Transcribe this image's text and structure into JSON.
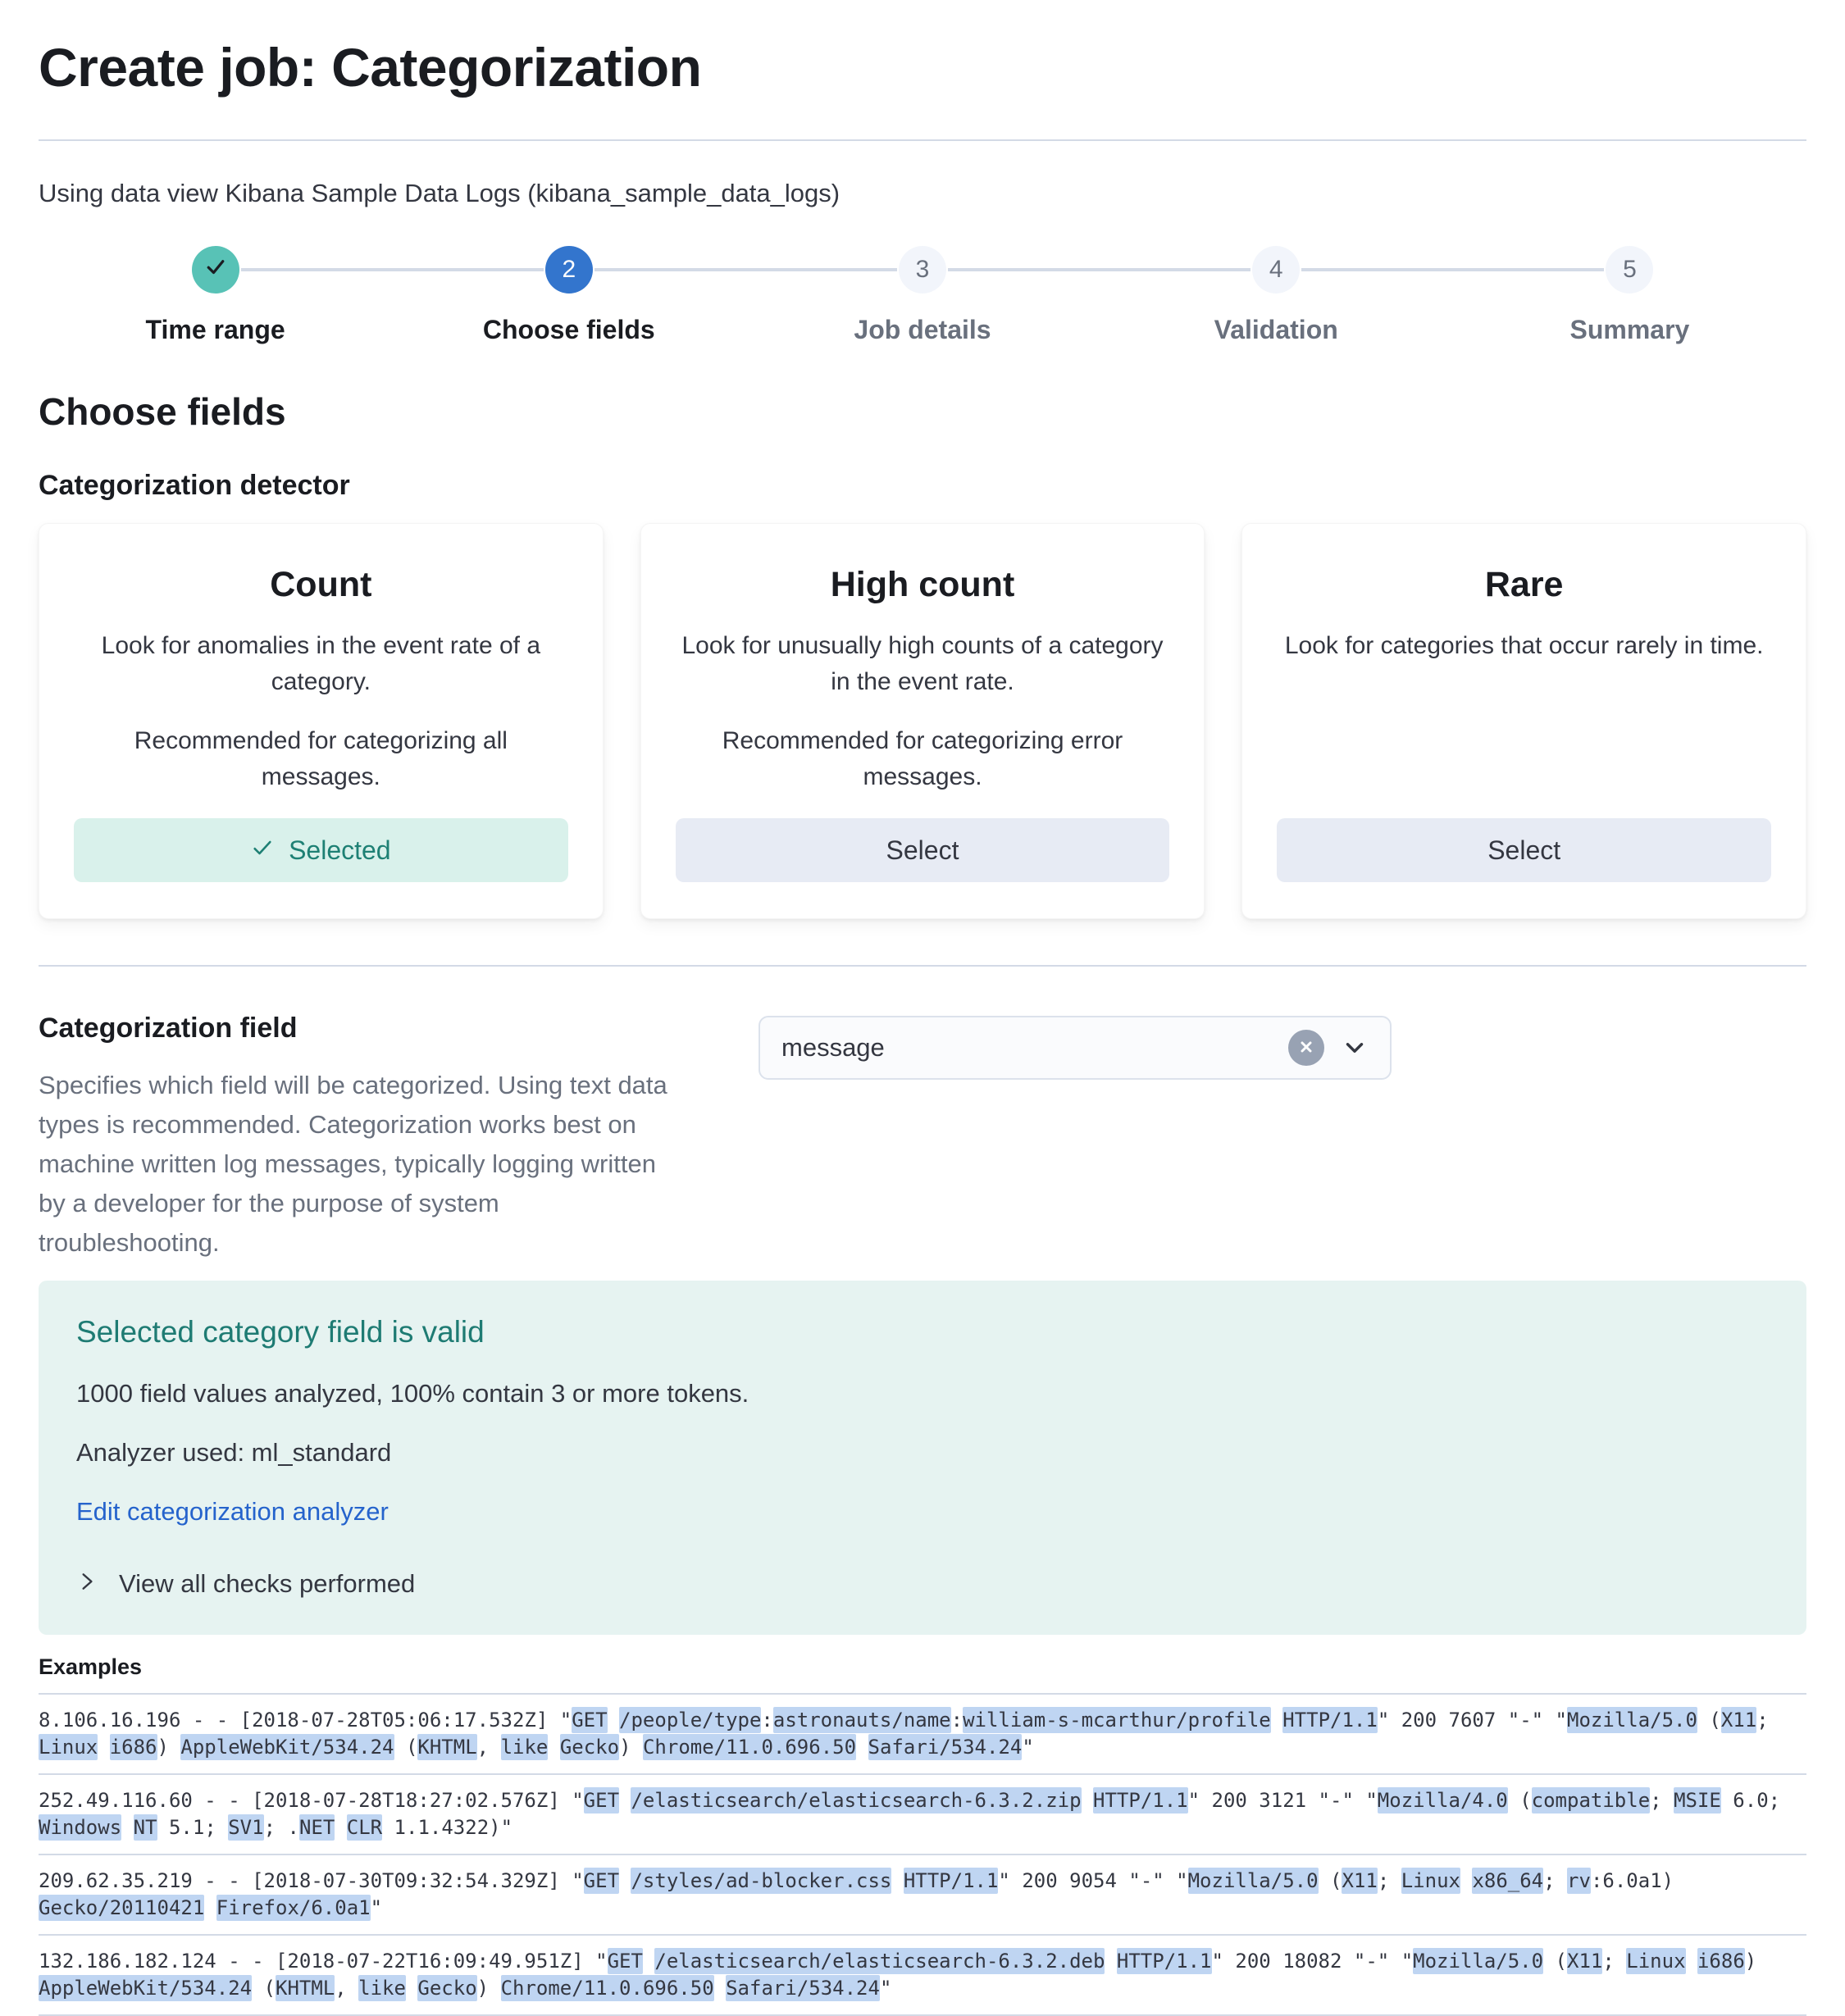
{
  "page": {
    "title": "Create job: Categorization",
    "subtitle": "Using data view Kibana Sample Data Logs (kibana_sample_data_logs)"
  },
  "steps": [
    {
      "label": "Time range",
      "status": "complete",
      "icon": "check-icon"
    },
    {
      "label": "Choose fields",
      "status": "active",
      "number": "2"
    },
    {
      "label": "Job details",
      "status": "incomplete",
      "number": "3"
    },
    {
      "label": "Validation",
      "status": "incomplete",
      "number": "4"
    },
    {
      "label": "Summary",
      "status": "incomplete",
      "number": "5"
    }
  ],
  "section": {
    "heading": "Choose fields",
    "detector_label": "Categorization detector"
  },
  "detector_cards": [
    {
      "title": "Count",
      "line1": "Look for anomalies in the event rate of a category.",
      "line2": "Recommended for categorizing all messages.",
      "button": "Selected",
      "selected": true
    },
    {
      "title": "High count",
      "line1": "Look for unusually high counts of a category in the event rate.",
      "line2": "Recommended for categorizing error messages.",
      "button": "Select",
      "selected": false
    },
    {
      "title": "Rare",
      "line1": "Look for categories that occur rarely in time.",
      "button": "Select",
      "selected": false
    }
  ],
  "categorization_field": {
    "heading": "Categorization field",
    "description": "Specifies which field will be categorized. Using text data types is recommended. Categorization works best on machine written log messages, typically logging written by a developer for the purpose of system troubleshooting.",
    "value": "message"
  },
  "callout": {
    "title": "Selected category field is valid",
    "line1": "1000 field values analyzed, 100% contain 3 or more tokens.",
    "line2": "Analyzer used: ml_standard",
    "link": "Edit categorization analyzer",
    "toggle": "View all checks performed"
  },
  "examples": {
    "label": "Examples",
    "rows": [
      [
        {
          "t": "8.106.16.196 - - [2018-07-28T05:06:17.532Z] \""
        },
        {
          "t": "GET",
          "h": true
        },
        {
          "t": " "
        },
        {
          "t": "/people/type",
          "h": true
        },
        {
          "t": ":"
        },
        {
          "t": "astronauts/name",
          "h": true
        },
        {
          "t": ":"
        },
        {
          "t": "william-s-mcarthur/profile",
          "h": true
        },
        {
          "t": " "
        },
        {
          "t": "HTTP/1.1",
          "h": true
        },
        {
          "t": "\" 200 7607 \"-\" \""
        },
        {
          "t": "Mozilla/5.0",
          "h": true
        },
        {
          "t": " ("
        },
        {
          "t": "X11",
          "h": true
        },
        {
          "t": "; "
        },
        {
          "t": "Linux",
          "h": true
        },
        {
          "t": " "
        },
        {
          "t": "i686",
          "h": true
        },
        {
          "t": ") "
        },
        {
          "t": "AppleWebKit/534.24",
          "h": true
        },
        {
          "t": " ("
        },
        {
          "t": "KHTML",
          "h": true
        },
        {
          "t": ", "
        },
        {
          "t": "like",
          "h": true
        },
        {
          "t": " "
        },
        {
          "t": "Gecko",
          "h": true
        },
        {
          "t": ") "
        },
        {
          "t": "Chrome/11.0.696.50",
          "h": true
        },
        {
          "t": " "
        },
        {
          "t": "Safari/534.24",
          "h": true
        },
        {
          "t": "\""
        }
      ],
      [
        {
          "t": "252.49.116.60 - - [2018-07-28T18:27:02.576Z] \""
        },
        {
          "t": "GET",
          "h": true
        },
        {
          "t": " "
        },
        {
          "t": "/elasticsearch/elasticsearch-6.3.2.zip",
          "h": true
        },
        {
          "t": " "
        },
        {
          "t": "HTTP/1.1",
          "h": true
        },
        {
          "t": "\" 200 3121 \"-\" \""
        },
        {
          "t": "Mozilla/4.0",
          "h": true
        },
        {
          "t": " ("
        },
        {
          "t": "compatible",
          "h": true
        },
        {
          "t": "; "
        },
        {
          "t": "MSIE",
          "h": true
        },
        {
          "t": " 6.0; "
        },
        {
          "t": "Windows",
          "h": true
        },
        {
          "t": " "
        },
        {
          "t": "NT",
          "h": true
        },
        {
          "t": " 5.1; "
        },
        {
          "t": "SV1",
          "h": true
        },
        {
          "t": "; ."
        },
        {
          "t": "NET",
          "h": true
        },
        {
          "t": " "
        },
        {
          "t": "CLR",
          "h": true
        },
        {
          "t": " 1.1.4322)\""
        }
      ],
      [
        {
          "t": "209.62.35.219 - - [2018-07-30T09:32:54.329Z] \""
        },
        {
          "t": "GET",
          "h": true
        },
        {
          "t": " "
        },
        {
          "t": "/styles/ad-blocker.css",
          "h": true
        },
        {
          "t": " "
        },
        {
          "t": "HTTP/1.1",
          "h": true
        },
        {
          "t": "\" 200 9054 \"-\" \""
        },
        {
          "t": "Mozilla/5.0",
          "h": true
        },
        {
          "t": " ("
        },
        {
          "t": "X11",
          "h": true
        },
        {
          "t": "; "
        },
        {
          "t": "Linux",
          "h": true
        },
        {
          "t": " "
        },
        {
          "t": "x86_64",
          "h": true
        },
        {
          "t": "; "
        },
        {
          "t": "rv",
          "h": true
        },
        {
          "t": ":6.0a1) "
        },
        {
          "t": "Gecko/20110421",
          "h": true
        },
        {
          "t": " "
        },
        {
          "t": "Firefox/6.0a1",
          "h": true
        },
        {
          "t": "\""
        }
      ],
      [
        {
          "t": "132.186.182.124 - - [2018-07-22T16:09:49.951Z] \""
        },
        {
          "t": "GET",
          "h": true
        },
        {
          "t": " "
        },
        {
          "t": "/elasticsearch/elasticsearch-6.3.2.deb",
          "h": true
        },
        {
          "t": " "
        },
        {
          "t": "HTTP/1.1",
          "h": true
        },
        {
          "t": "\" 200 18082 \"-\" \""
        },
        {
          "t": "Mozilla/5.0",
          "h": true
        },
        {
          "t": " ("
        },
        {
          "t": "X11",
          "h": true
        },
        {
          "t": "; "
        },
        {
          "t": "Linux",
          "h": true
        },
        {
          "t": " "
        },
        {
          "t": "i686",
          "h": true
        },
        {
          "t": ") "
        },
        {
          "t": "AppleWebKit/534.24",
          "h": true
        },
        {
          "t": " ("
        },
        {
          "t": "KHTML",
          "h": true
        },
        {
          "t": ", "
        },
        {
          "t": "like",
          "h": true
        },
        {
          "t": " "
        },
        {
          "t": "Gecko",
          "h": true
        },
        {
          "t": ") "
        },
        {
          "t": "Chrome/11.0.696.50",
          "h": true
        },
        {
          "t": " "
        },
        {
          "t": "Safari/534.24",
          "h": true
        },
        {
          "t": "\""
        }
      ]
    ]
  },
  "icons": {
    "step_complete": "check-icon",
    "selected_button": "check-icon",
    "combo_clear": "clear-circle-icon",
    "combo_caret": "chevron-down-icon",
    "callout_toggle": "chevron-right-icon"
  },
  "colors": {
    "primary": "#3375cd",
    "success": "#58c2b6",
    "success_light": "#d9f1eb",
    "success_text": "#1e8074",
    "callout_bg": "#e6f3f1",
    "callout_title": "#1e7b73",
    "link": "#2563cc",
    "text": "#343741",
    "title_text": "#1a1c21",
    "subdued": "#69707d",
    "border": "#d3dae6",
    "button_bg": "#e7ebf4",
    "highlight": "#bfd5f2",
    "input_bg": "#fafbfd",
    "step_incomplete_bg": "#f2f5fb",
    "clear_badge": "#98a2b3"
  }
}
